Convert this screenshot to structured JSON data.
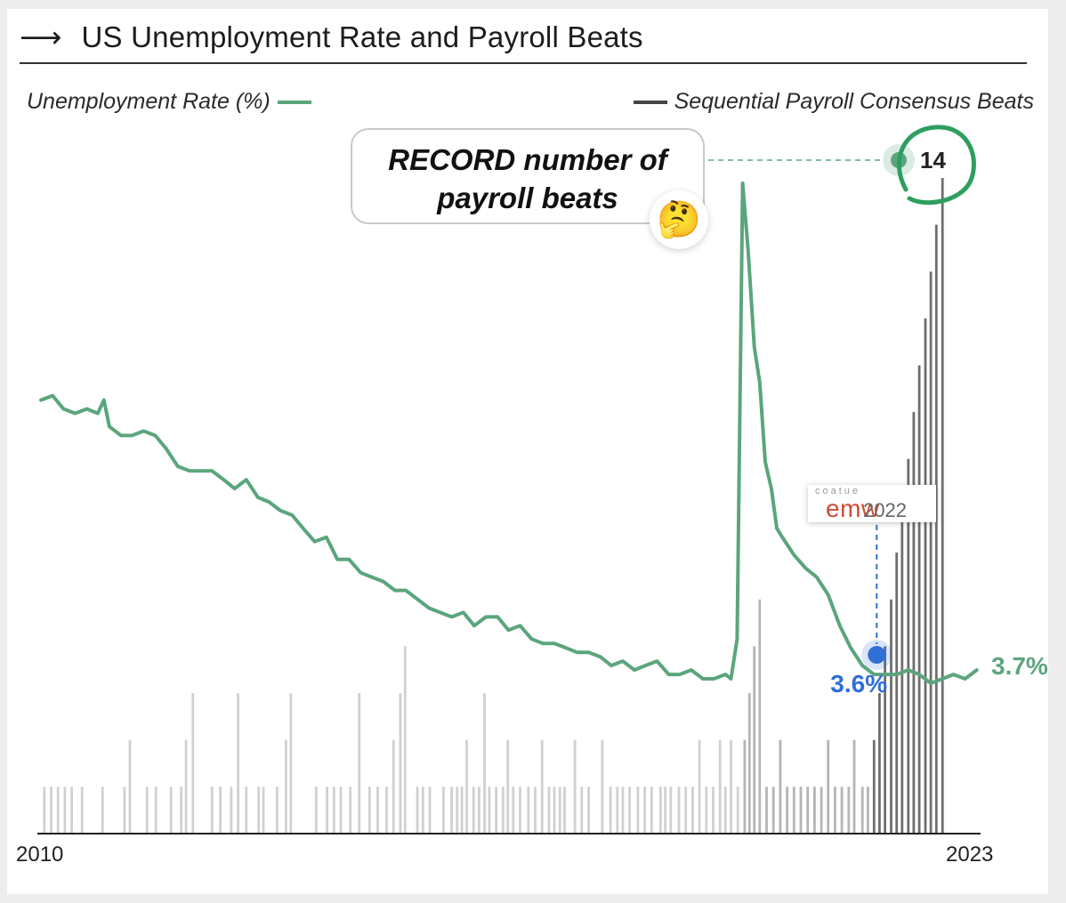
{
  "title": "US Unemployment Rate and Payroll Beats",
  "title_arrow": "⟶",
  "legend": {
    "left": "Unemployment Rate (%)",
    "right": "Sequential Payroll Consensus Beats"
  },
  "callout": {
    "line1": "RECORD number of",
    "line2": "payroll beats",
    "emoji": "🤔"
  },
  "badge": {
    "small": "coatue",
    "main": "emw",
    "year": "2022"
  },
  "colors": {
    "line": "#5ba57d",
    "bar_light": "#d0d0d0",
    "bar_dark": "#6e6e6e",
    "marker_blue": "#2f6fd6"
  },
  "chart_data": {
    "type": "line+bar",
    "x_start": "2010",
    "x_end": "2023",
    "x_tick_labels": [
      "2010",
      "2023"
    ],
    "series": [
      {
        "name": "Unemployment Rate (%)",
        "type": "line",
        "points": [
          [
            2010.0,
            9.8
          ],
          [
            2010.17,
            9.9
          ],
          [
            2010.33,
            9.6
          ],
          [
            2010.5,
            9.5
          ],
          [
            2010.67,
            9.6
          ],
          [
            2010.83,
            9.5
          ],
          [
            2010.92,
            9.8
          ],
          [
            2011.0,
            9.2
          ],
          [
            2011.17,
            9.0
          ],
          [
            2011.33,
            9.0
          ],
          [
            2011.5,
            9.1
          ],
          [
            2011.67,
            9.0
          ],
          [
            2011.83,
            8.7
          ],
          [
            2012.0,
            8.3
          ],
          [
            2012.17,
            8.2
          ],
          [
            2012.33,
            8.2
          ],
          [
            2012.5,
            8.2
          ],
          [
            2012.67,
            8.0
          ],
          [
            2012.83,
            7.8
          ],
          [
            2013.0,
            8.0
          ],
          [
            2013.17,
            7.6
          ],
          [
            2013.33,
            7.5
          ],
          [
            2013.5,
            7.3
          ],
          [
            2013.67,
            7.2
          ],
          [
            2013.83,
            6.9
          ],
          [
            2014.0,
            6.6
          ],
          [
            2014.17,
            6.7
          ],
          [
            2014.33,
            6.2
          ],
          [
            2014.5,
            6.2
          ],
          [
            2014.67,
            5.9
          ],
          [
            2014.83,
            5.8
          ],
          [
            2015.0,
            5.7
          ],
          [
            2015.17,
            5.5
          ],
          [
            2015.33,
            5.5
          ],
          [
            2015.5,
            5.3
          ],
          [
            2015.67,
            5.1
          ],
          [
            2015.83,
            5.0
          ],
          [
            2016.0,
            4.9
          ],
          [
            2016.17,
            5.0
          ],
          [
            2016.33,
            4.7
          ],
          [
            2016.5,
            4.9
          ],
          [
            2016.67,
            4.9
          ],
          [
            2016.83,
            4.6
          ],
          [
            2017.0,
            4.7
          ],
          [
            2017.17,
            4.4
          ],
          [
            2017.33,
            4.3
          ],
          [
            2017.5,
            4.3
          ],
          [
            2017.67,
            4.2
          ],
          [
            2017.83,
            4.1
          ],
          [
            2018.0,
            4.1
          ],
          [
            2018.17,
            4.0
          ],
          [
            2018.33,
            3.8
          ],
          [
            2018.5,
            3.9
          ],
          [
            2018.67,
            3.7
          ],
          [
            2018.83,
            3.8
          ],
          [
            2019.0,
            3.9
          ],
          [
            2019.17,
            3.6
          ],
          [
            2019.33,
            3.6
          ],
          [
            2019.5,
            3.7
          ],
          [
            2019.67,
            3.5
          ],
          [
            2019.83,
            3.5
          ],
          [
            2020.0,
            3.6
          ],
          [
            2020.08,
            3.5
          ],
          [
            2020.17,
            4.4
          ],
          [
            2020.25,
            14.7
          ],
          [
            2020.33,
            13.2
          ],
          [
            2020.42,
            11.0
          ],
          [
            2020.5,
            10.2
          ],
          [
            2020.58,
            8.4
          ],
          [
            2020.67,
            7.8
          ],
          [
            2020.75,
            6.9
          ],
          [
            2020.83,
            6.7
          ],
          [
            2021.0,
            6.3
          ],
          [
            2021.17,
            6.0
          ],
          [
            2021.33,
            5.8
          ],
          [
            2021.5,
            5.4
          ],
          [
            2021.67,
            4.7
          ],
          [
            2021.83,
            4.2
          ],
          [
            2022.0,
            3.8
          ],
          [
            2022.17,
            3.6
          ],
          [
            2022.33,
            3.6
          ],
          [
            2022.5,
            3.6
          ],
          [
            2022.67,
            3.7
          ],
          [
            2022.83,
            3.6
          ],
          [
            2023.0,
            3.4
          ],
          [
            2023.17,
            3.5
          ],
          [
            2023.33,
            3.6
          ],
          [
            2023.5,
            3.5
          ],
          [
            2023.67,
            3.7
          ]
        ]
      },
      {
        "name": "Sequential Payroll Consensus Beats",
        "type": "bar",
        "bars": [
          [
            2010.05,
            1
          ],
          [
            2010.15,
            1
          ],
          [
            2010.25,
            1
          ],
          [
            2010.35,
            1
          ],
          [
            2010.45,
            1
          ],
          [
            2010.6,
            1
          ],
          [
            2010.9,
            1
          ],
          [
            2011.22,
            1
          ],
          [
            2011.3,
            2
          ],
          [
            2011.55,
            1
          ],
          [
            2011.68,
            1
          ],
          [
            2011.9,
            1
          ],
          [
            2012.05,
            1
          ],
          [
            2012.12,
            2
          ],
          [
            2012.22,
            3
          ],
          [
            2012.5,
            1
          ],
          [
            2012.62,
            1
          ],
          [
            2012.78,
            1
          ],
          [
            2012.88,
            3
          ],
          [
            2013.0,
            1
          ],
          [
            2013.18,
            1
          ],
          [
            2013.25,
            1
          ],
          [
            2013.45,
            1
          ],
          [
            2013.58,
            2
          ],
          [
            2013.65,
            3
          ],
          [
            2014.02,
            1
          ],
          [
            2014.18,
            1
          ],
          [
            2014.28,
            1
          ],
          [
            2014.38,
            1
          ],
          [
            2014.52,
            1
          ],
          [
            2014.65,
            3
          ],
          [
            2014.8,
            1
          ],
          [
            2014.92,
            1
          ],
          [
            2015.05,
            1
          ],
          [
            2015.15,
            2
          ],
          [
            2015.25,
            3
          ],
          [
            2015.32,
            4
          ],
          [
            2015.5,
            1
          ],
          [
            2015.58,
            1
          ],
          [
            2015.68,
            1
          ],
          [
            2015.88,
            1
          ],
          [
            2016.0,
            1
          ],
          [
            2016.08,
            1
          ],
          [
            2016.15,
            1
          ],
          [
            2016.22,
            2
          ],
          [
            2016.32,
            1
          ],
          [
            2016.4,
            1
          ],
          [
            2016.48,
            3
          ],
          [
            2016.55,
            1
          ],
          [
            2016.65,
            1
          ],
          [
            2016.75,
            1
          ],
          [
            2016.82,
            2
          ],
          [
            2016.9,
            1
          ],
          [
            2017.0,
            1
          ],
          [
            2017.12,
            1
          ],
          [
            2017.22,
            1
          ],
          [
            2017.32,
            2
          ],
          [
            2017.42,
            1
          ],
          [
            2017.5,
            1
          ],
          [
            2017.58,
            1
          ],
          [
            2017.65,
            1
          ],
          [
            2017.8,
            2
          ],
          [
            2017.9,
            1
          ],
          [
            2018.0,
            1
          ],
          [
            2018.2,
            2
          ],
          [
            2018.32,
            1
          ],
          [
            2018.42,
            1
          ],
          [
            2018.5,
            1
          ],
          [
            2018.6,
            1
          ],
          [
            2018.72,
            1
          ],
          [
            2018.82,
            1
          ],
          [
            2018.92,
            1
          ],
          [
            2019.05,
            1
          ],
          [
            2019.12,
            1
          ],
          [
            2019.2,
            1
          ],
          [
            2019.32,
            1
          ],
          [
            2019.42,
            1
          ],
          [
            2019.52,
            1
          ],
          [
            2019.62,
            2
          ],
          [
            2019.72,
            1
          ],
          [
            2019.82,
            1
          ],
          [
            2019.92,
            2
          ],
          [
            2020.0,
            1
          ],
          [
            2020.08,
            2
          ],
          [
            2020.18,
            1
          ],
          [
            2020.28,
            2
          ],
          [
            2020.35,
            3
          ],
          [
            2020.42,
            4
          ],
          [
            2020.5,
            5
          ],
          [
            2020.6,
            1
          ],
          [
            2020.7,
            1
          ],
          [
            2020.8,
            2
          ],
          [
            2020.9,
            1
          ],
          [
            2021.0,
            1
          ],
          [
            2021.1,
            1
          ],
          [
            2021.2,
            1
          ],
          [
            2021.3,
            1
          ],
          [
            2021.4,
            1
          ],
          [
            2021.5,
            2
          ],
          [
            2021.6,
            1
          ],
          [
            2021.7,
            1
          ],
          [
            2021.8,
            1
          ],
          [
            2021.88,
            2
          ],
          [
            2022.0,
            1
          ],
          [
            2022.08,
            1
          ],
          [
            2022.17,
            2
          ],
          [
            2022.25,
            3
          ],
          [
            2022.33,
            4
          ],
          [
            2022.42,
            5
          ],
          [
            2022.5,
            6
          ],
          [
            2022.58,
            7
          ],
          [
            2022.67,
            8
          ],
          [
            2022.75,
            9
          ],
          [
            2022.83,
            10
          ],
          [
            2022.92,
            11
          ],
          [
            2023.0,
            12
          ],
          [
            2023.08,
            13
          ],
          [
            2023.17,
            14
          ]
        ]
      }
    ],
    "annotations": [
      {
        "label": "14",
        "x": 2023.05,
        "value": 14,
        "series": "Sequential Payroll Consensus Beats"
      },
      {
        "label": "3.6%",
        "x": 2022.17,
        "value": 3.6,
        "series": "Unemployment Rate (%)"
      },
      {
        "label": "3.7%",
        "x": 2023.67,
        "value": 3.7,
        "series": "Unemployment Rate (%)"
      }
    ]
  }
}
